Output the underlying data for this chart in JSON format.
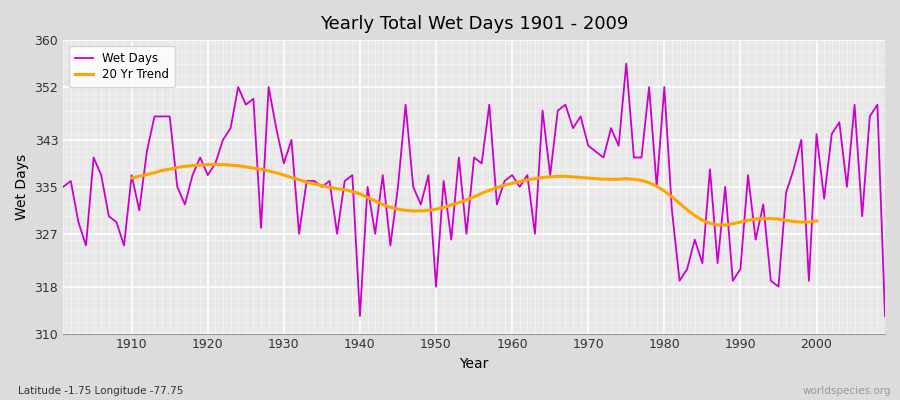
{
  "title": "Yearly Total Wet Days 1901 - 2009",
  "xlabel": "Year",
  "ylabel": "Wet Days",
  "subtitle_lat": "Latitude -1.75 Longitude -77.75",
  "watermark": "worldspecies.org",
  "ylim": [
    310,
    360
  ],
  "yticks": [
    310,
    318,
    327,
    335,
    343,
    352,
    360
  ],
  "line_color": "#CC00CC",
  "trend_color": "#FFA500",
  "fig_bg_color": "#DCDCDC",
  "plot_bg_color": "#E8E8E8",
  "years": [
    1901,
    1902,
    1903,
    1904,
    1905,
    1906,
    1907,
    1908,
    1909,
    1910,
    1911,
    1912,
    1913,
    1914,
    1915,
    1916,
    1917,
    1918,
    1919,
    1920,
    1921,
    1922,
    1923,
    1924,
    1925,
    1926,
    1927,
    1928,
    1929,
    1930,
    1931,
    1932,
    1933,
    1934,
    1935,
    1936,
    1937,
    1938,
    1939,
    1940,
    1941,
    1942,
    1943,
    1944,
    1945,
    1946,
    1947,
    1948,
    1949,
    1950,
    1951,
    1952,
    1953,
    1954,
    1955,
    1956,
    1957,
    1958,
    1959,
    1960,
    1961,
    1962,
    1963,
    1964,
    1965,
    1966,
    1967,
    1968,
    1969,
    1970,
    1971,
    1972,
    1973,
    1974,
    1975,
    1976,
    1977,
    1978,
    1979,
    1980,
    1981,
    1982,
    1983,
    1984,
    1985,
    1986,
    1987,
    1988,
    1989,
    1990,
    1991,
    1992,
    1993,
    1994,
    1995,
    1996,
    1997,
    1998,
    1999,
    2000,
    2001,
    2002,
    2003,
    2004,
    2005,
    2006,
    2007,
    2008,
    2009
  ],
  "wet_days": [
    335,
    336,
    329,
    325,
    340,
    337,
    330,
    329,
    325,
    337,
    331,
    341,
    347,
    347,
    347,
    335,
    332,
    337,
    340,
    337,
    339,
    343,
    345,
    352,
    349,
    350,
    328,
    352,
    345,
    339,
    343,
    327,
    336,
    336,
    335,
    336,
    327,
    336,
    337,
    313,
    335,
    327,
    337,
    325,
    335,
    349,
    335,
    332,
    337,
    318,
    336,
    326,
    340,
    327,
    340,
    339,
    349,
    332,
    336,
    337,
    335,
    337,
    327,
    348,
    337,
    348,
    349,
    345,
    347,
    342,
    341,
    340,
    345,
    342,
    356,
    340,
    340,
    352,
    335,
    352,
    331,
    319,
    321,
    326,
    322,
    338,
    322,
    335,
    319,
    321,
    337,
    326,
    332,
    319,
    318,
    334,
    338,
    343,
    319,
    344,
    333,
    344,
    346,
    335,
    349,
    330,
    347,
    349,
    313
  ],
  "trend_years": [
    1910,
    1911,
    1912,
    1913,
    1914,
    1915,
    1916,
    1917,
    1918,
    1919,
    1920,
    1921,
    1922,
    1923,
    1924,
    1925,
    1926,
    1927,
    1928,
    1929,
    1930,
    1931,
    1932,
    1933,
    1934,
    1935,
    1936,
    1937,
    1938,
    1939,
    1940,
    1941,
    1942,
    1943,
    1944,
    1945,
    1946,
    1947,
    1948,
    1949,
    1950,
    1951,
    1952,
    1953,
    1954,
    1955,
    1956,
    1957,
    1958,
    1959,
    1960,
    1961,
    1962,
    1963,
    1964,
    1965,
    1966,
    1967,
    1968,
    1969,
    1970,
    1971,
    1972,
    1973,
    1974,
    1975,
    1976,
    1977,
    1978,
    1979,
    1980,
    1981,
    1982,
    1983,
    1984,
    1985,
    1986,
    1987,
    1988,
    1989,
    1990,
    1991,
    1992,
    1993,
    1994,
    1995,
    1996,
    1997,
    1998,
    1999,
    2000
  ],
  "trend_values": [
    336.5,
    336.8,
    337.1,
    337.4,
    337.8,
    338.0,
    338.3,
    338.5,
    338.6,
    338.7,
    338.8,
    338.8,
    338.8,
    338.7,
    338.6,
    338.4,
    338.2,
    338.0,
    337.7,
    337.4,
    337.0,
    336.6,
    336.2,
    335.8,
    335.5,
    335.2,
    334.9,
    334.7,
    334.5,
    334.2,
    333.8,
    333.2,
    332.6,
    332.0,
    331.5,
    331.2,
    331.0,
    330.9,
    330.9,
    331.0,
    331.2,
    331.5,
    331.9,
    332.3,
    332.8,
    333.3,
    333.9,
    334.4,
    334.9,
    335.3,
    335.6,
    335.9,
    336.2,
    336.4,
    336.6,
    336.7,
    336.8,
    336.8,
    336.7,
    336.6,
    336.5,
    336.4,
    336.3,
    336.3,
    336.3,
    336.4,
    336.3,
    336.1,
    335.7,
    335.1,
    334.3,
    333.3,
    332.2,
    331.1,
    330.1,
    329.3,
    328.8,
    328.5,
    328.5,
    328.7,
    329.0,
    329.3,
    329.5,
    329.6,
    329.6,
    329.5,
    329.3,
    329.1,
    329.0,
    329.0,
    329.2
  ]
}
